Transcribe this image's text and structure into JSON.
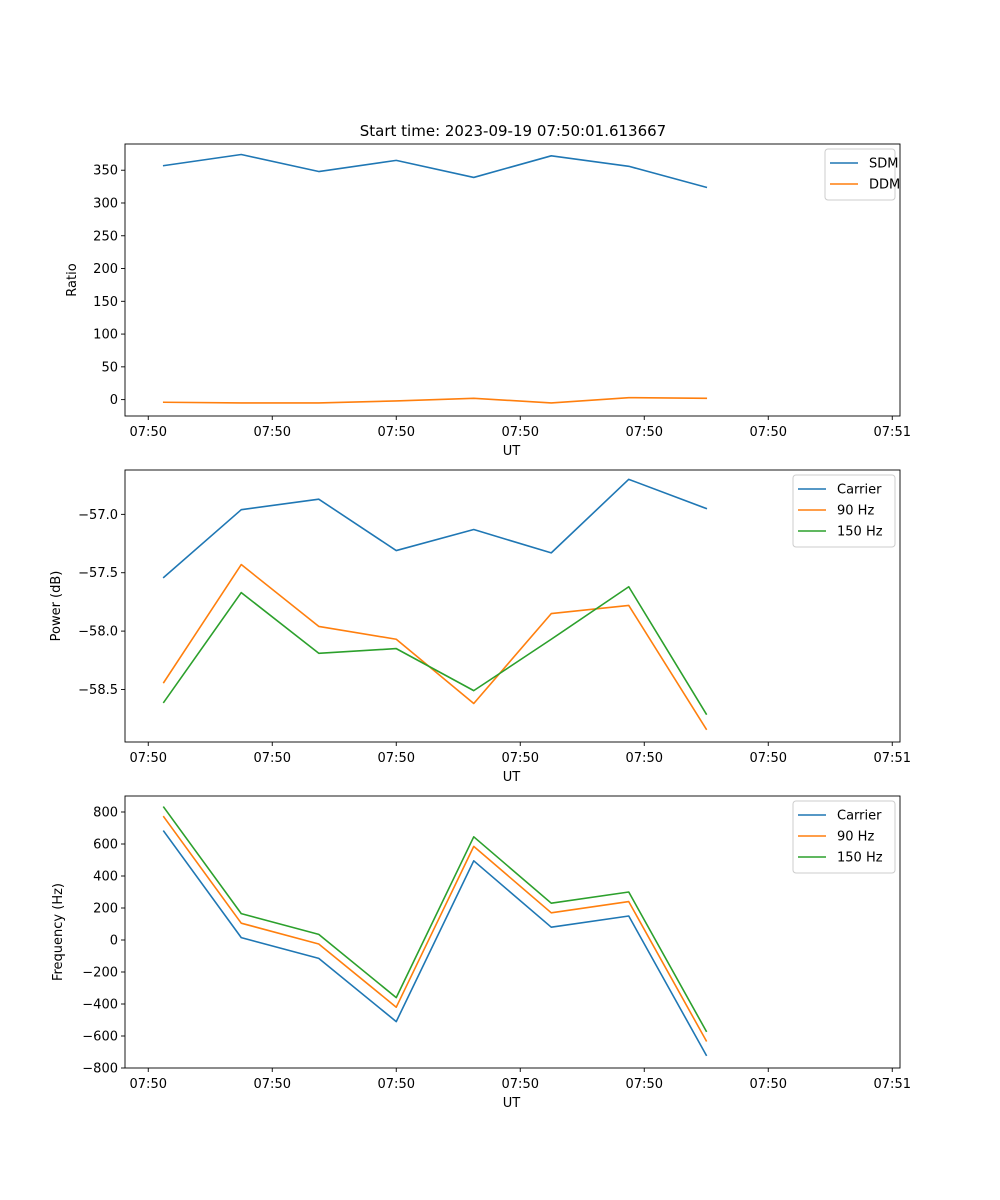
{
  "figure_title": "Start time: 2023-09-19 07:50:01.613667",
  "colors": {
    "c0": "#1f77b4",
    "c1": "#ff7f0e",
    "c2": "#2ca02c"
  },
  "chart_data": [
    {
      "type": "line",
      "title": "Start time: 2023-09-19 07:50:01.613667",
      "xlabel": "UT",
      "ylabel": "Ratio",
      "xlim": [
        -0.5,
        9.5
      ],
      "ylim": [
        -25,
        390
      ],
      "x": [
        0,
        1,
        2,
        3,
        4,
        5,
        6,
        7
      ],
      "x_ticks": [
        -0.2,
        1.4,
        3.0,
        4.6,
        6.2,
        7.8,
        9.4
      ],
      "x_tick_labels": [
        "07:50",
        "07:50",
        "07:50",
        "07:50",
        "07:50",
        "07:50",
        "07:51"
      ],
      "y_ticks": [
        0,
        50,
        100,
        150,
        200,
        250,
        300,
        350
      ],
      "y_tick_labels": [
        "0",
        "50",
        "100",
        "150",
        "200",
        "250",
        "300",
        "350"
      ],
      "legend_position": "top-right",
      "series": [
        {
          "name": "SDM",
          "color": "#1f77b4",
          "values": [
            357,
            374,
            348,
            365,
            339,
            372,
            356,
            324
          ]
        },
        {
          "name": "DDM",
          "color": "#ff7f0e",
          "values": [
            -4,
            -5,
            -5,
            -2,
            2,
            -5,
            3,
            2
          ]
        }
      ]
    },
    {
      "type": "line",
      "title": "",
      "xlabel": "UT",
      "ylabel": "Power (dB)",
      "xlim": [
        -0.5,
        9.5
      ],
      "ylim": [
        -58.95,
        -56.62
      ],
      "x": [
        0,
        1,
        2,
        3,
        4,
        5,
        6,
        7
      ],
      "x_ticks": [
        -0.2,
        1.4,
        3.0,
        4.6,
        6.2,
        7.8,
        9.4
      ],
      "x_tick_labels": [
        "07:50",
        "07:50",
        "07:50",
        "07:50",
        "07:50",
        "07:50",
        "07:51"
      ],
      "y_ticks": [
        -58.5,
        -58.0,
        -57.5,
        -57.0
      ],
      "y_tick_labels": [
        "−58.5",
        "−58.0",
        "−57.5",
        "−57.0"
      ],
      "legend_position": "top-right",
      "series": [
        {
          "name": "Carrier",
          "color": "#1f77b4",
          "values": [
            -57.54,
            -56.96,
            -56.87,
            -57.31,
            -57.13,
            -57.33,
            -56.7,
            -56.95
          ]
        },
        {
          "name": "90 Hz",
          "color": "#ff7f0e",
          "values": [
            -58.44,
            -57.43,
            -57.96,
            -58.07,
            -58.62,
            -57.85,
            -57.78,
            -58.84
          ]
        },
        {
          "name": "150 Hz",
          "color": "#2ca02c",
          "values": [
            -58.61,
            -57.67,
            -58.19,
            -58.15,
            -58.51,
            -58.07,
            -57.62,
            -58.71
          ]
        }
      ]
    },
    {
      "type": "line",
      "title": "",
      "xlabel": "UT",
      "ylabel": "Frequency (Hz)",
      "xlim": [
        -0.5,
        9.5
      ],
      "ylim": [
        -800,
        900
      ],
      "x": [
        0,
        1,
        2,
        3,
        4,
        5,
        6,
        7
      ],
      "x_ticks": [
        -0.2,
        1.4,
        3.0,
        4.6,
        6.2,
        7.8,
        9.4
      ],
      "x_tick_labels": [
        "07:50",
        "07:50",
        "07:50",
        "07:50",
        "07:50",
        "07:50",
        "07:51"
      ],
      "y_ticks": [
        -800,
        -600,
        -400,
        -200,
        0,
        200,
        400,
        600,
        800
      ],
      "y_tick_labels": [
        "−800",
        "−600",
        "−400",
        "−200",
        "0",
        "200",
        "400",
        "600",
        "800"
      ],
      "legend_position": "top-right",
      "series": [
        {
          "name": "Carrier",
          "color": "#1f77b4",
          "values": [
            680,
            15,
            -115,
            -510,
            495,
            80,
            150,
            -720
          ]
        },
        {
          "name": "90 Hz",
          "color": "#ff7f0e",
          "values": [
            770,
            105,
            -25,
            -420,
            585,
            170,
            240,
            -630
          ]
        },
        {
          "name": "150 Hz",
          "color": "#2ca02c",
          "values": [
            830,
            165,
            35,
            -360,
            645,
            230,
            300,
            -570
          ]
        }
      ]
    }
  ]
}
